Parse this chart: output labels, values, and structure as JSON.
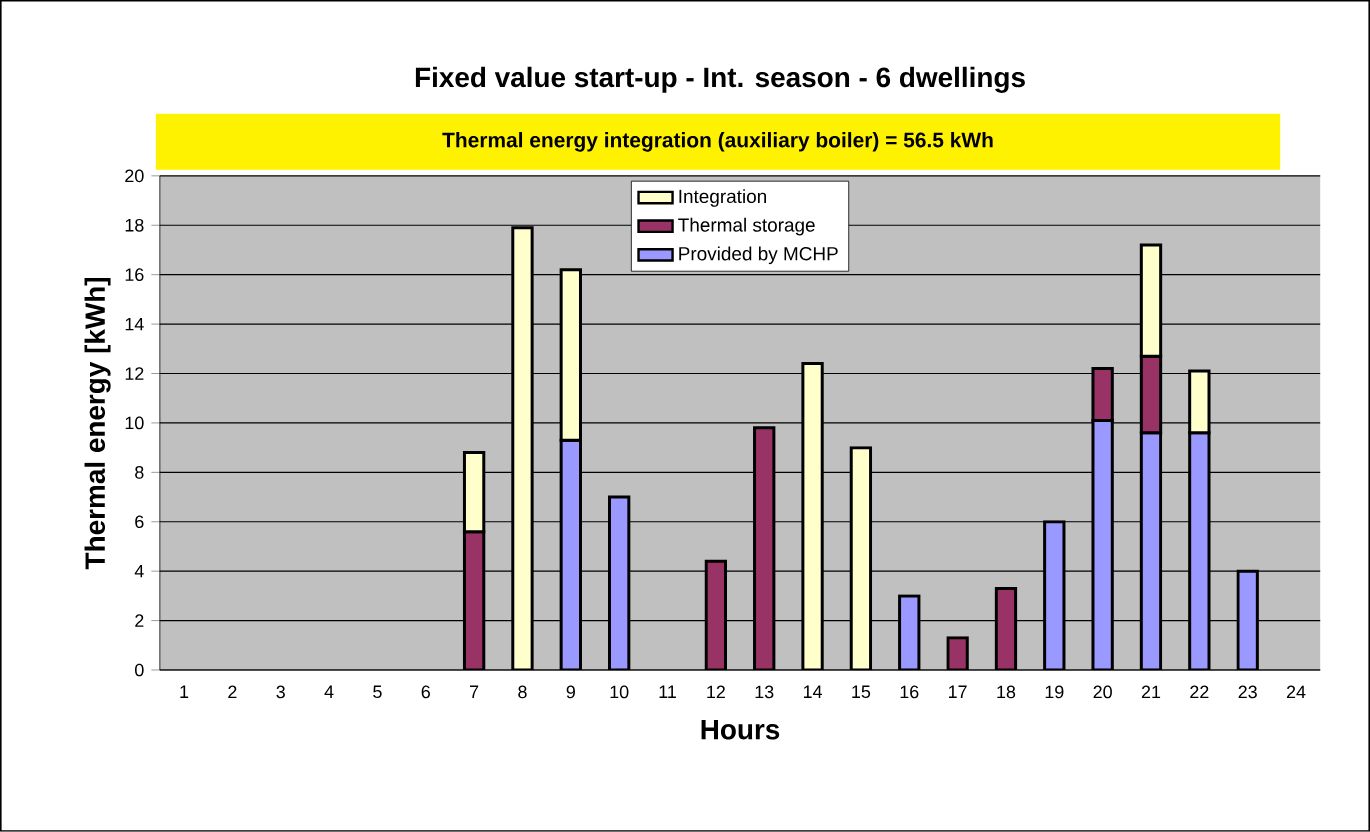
{
  "chart_data": {
    "type": "bar",
    "stacked": true,
    "title": "Fixed value start-up - Int. season - 6 dwellings",
    "subtitle": "Thermal energy integration (auxiliary boiler) = 56.5 kWh",
    "xlabel": "Hours",
    "ylabel": "Thermal energy [kWh]",
    "categories": [
      "1",
      "2",
      "3",
      "4",
      "5",
      "6",
      "7",
      "8",
      "9",
      "10",
      "11",
      "12",
      "13",
      "14",
      "15",
      "16",
      "17",
      "18",
      "19",
      "20",
      "21",
      "22",
      "23",
      "24"
    ],
    "series": [
      {
        "name": "Provided by MCHP",
        "color": "#9999ff",
        "values": [
          null,
          null,
          null,
          null,
          null,
          null,
          null,
          null,
          9.3,
          7.0,
          null,
          null,
          null,
          null,
          null,
          3.0,
          null,
          null,
          6.0,
          10.1,
          9.6,
          9.6,
          4.0,
          null
        ]
      },
      {
        "name": "Thermal storage",
        "color": "#993366",
        "values": [
          null,
          null,
          null,
          null,
          null,
          null,
          5.6,
          null,
          null,
          null,
          null,
          4.4,
          9.8,
          null,
          null,
          null,
          1.3,
          3.3,
          null,
          2.1,
          3.1,
          null,
          null,
          null
        ]
      },
      {
        "name": "Integration",
        "color": "#ffffcc",
        "values": [
          null,
          null,
          null,
          null,
          null,
          null,
          3.2,
          17.9,
          6.9,
          null,
          null,
          null,
          null,
          12.4,
          9.0,
          null,
          null,
          null,
          null,
          null,
          4.5,
          2.5,
          null,
          null
        ]
      }
    ],
    "ylim": [
      0,
      20
    ],
    "yticks": [
      0,
      2,
      4,
      6,
      8,
      10,
      12,
      14,
      16,
      18,
      20
    ],
    "grid": "y",
    "legend": "top"
  }
}
